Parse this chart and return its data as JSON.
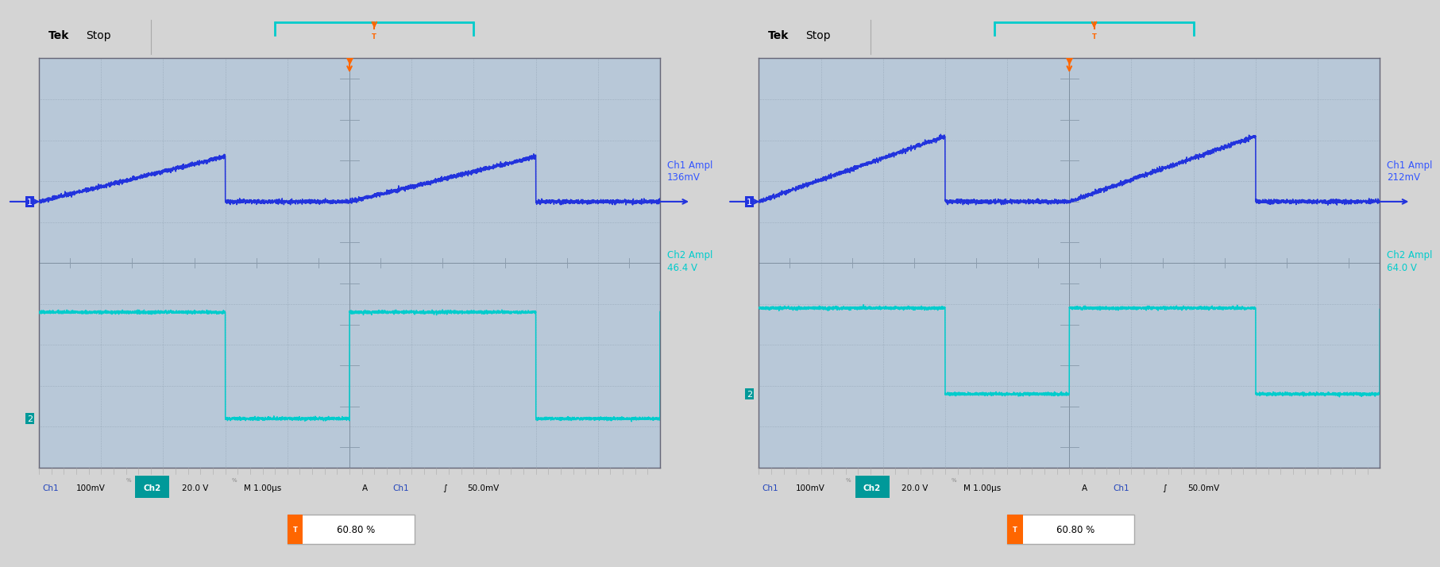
{
  "outer_bg": "#d4d4d4",
  "panel_bg": "#ffffff",
  "scope_bg": "#b8c8d8",
  "header_bg": "#f0f0f0",
  "bottom_bg": "#f0f0f0",
  "grid_major_color": "#7a8a9a",
  "grid_minor_color": "#8a9aaa",
  "ch1_color": "#2233dd",
  "ch2_color": "#00cccc",
  "scope_border": "#888888",
  "panels": [
    {
      "ch1_ampl_label": "Ch1 Ampl",
      "ch1_ampl_val": "136mV",
      "ch2_ampl_label": "Ch2 Ampl",
      "ch2_ampl_val": "46.4 V",
      "duty": "60.80 %",
      "ch1_base": 1.5,
      "ch1_ramp": 1.1,
      "ch2_high": -1.2,
      "ch2_low": -3.8,
      "period": 5.0,
      "duty_cycle": 0.6
    },
    {
      "ch1_ampl_label": "Ch1 Ampl",
      "ch1_ampl_val": "212mV",
      "ch2_ampl_label": "Ch2 Ampl",
      "ch2_ampl_val": "64.0 V",
      "duty": "60.80 %",
      "ch1_base": 1.5,
      "ch1_ramp": 1.6,
      "ch2_high": -1.1,
      "ch2_low": -3.2,
      "period": 5.0,
      "duty_cycle": 0.6
    }
  ]
}
